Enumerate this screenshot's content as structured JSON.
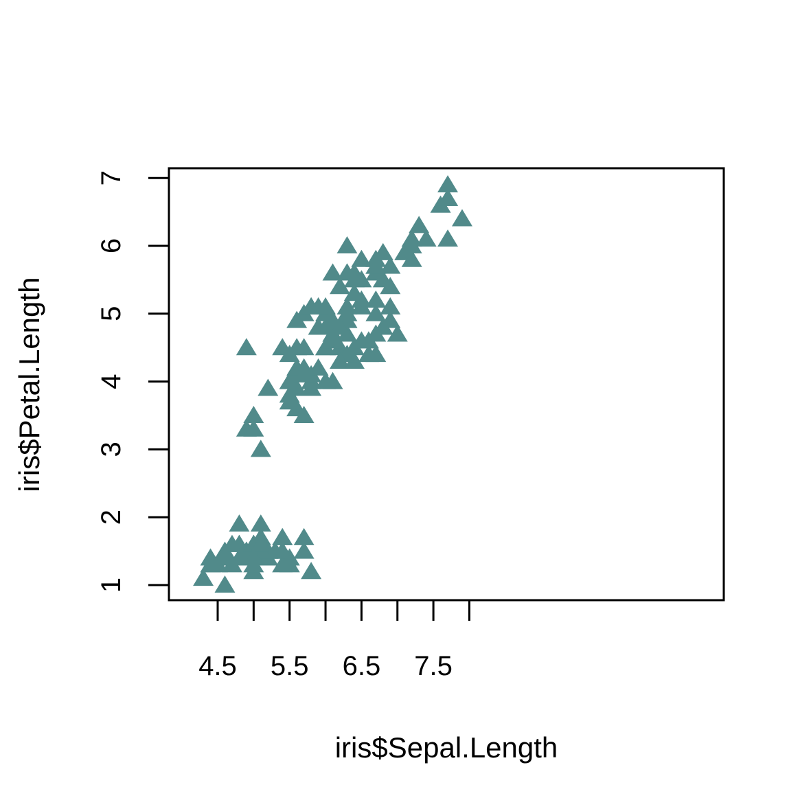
{
  "chart_data": {
    "type": "scatter",
    "title": "",
    "xlabel": "iris$Sepal.Length",
    "ylabel": "iris$Petal.Length",
    "xlim": [
      4.3,
      7.9
    ],
    "ylim": [
      1.0,
      6.9
    ],
    "grid": false,
    "marker": "filled-triangle",
    "color": "#518A8A",
    "x_ticks": [
      4.5,
      5.5,
      6.5,
      7.5
    ],
    "x_tick_labels": [
      "4.5",
      "5.5",
      "6.5",
      "7.5"
    ],
    "x_minor_ticks": [
      5.0,
      6.0,
      7.0,
      8.0
    ],
    "y_ticks": [
      1,
      2,
      3,
      4,
      5,
      6,
      7
    ],
    "y_tick_labels": [
      "1",
      "2",
      "3",
      "4",
      "5",
      "6",
      "7"
    ],
    "points": [
      [
        5.1,
        1.4
      ],
      [
        4.9,
        1.4
      ],
      [
        4.7,
        1.3
      ],
      [
        4.6,
        1.5
      ],
      [
        5.0,
        1.4
      ],
      [
        5.4,
        1.7
      ],
      [
        4.6,
        1.4
      ],
      [
        5.0,
        1.5
      ],
      [
        4.4,
        1.4
      ],
      [
        4.9,
        1.5
      ],
      [
        5.4,
        1.5
      ],
      [
        4.8,
        1.6
      ],
      [
        4.8,
        1.4
      ],
      [
        4.3,
        1.1
      ],
      [
        5.8,
        1.2
      ],
      [
        5.7,
        1.5
      ],
      [
        5.4,
        1.3
      ],
      [
        5.1,
        1.4
      ],
      [
        5.7,
        1.7
      ],
      [
        5.1,
        1.5
      ],
      [
        5.4,
        1.7
      ],
      [
        5.1,
        1.5
      ],
      [
        4.6,
        1.0
      ],
      [
        5.1,
        1.7
      ],
      [
        4.8,
        1.9
      ],
      [
        5.0,
        1.6
      ],
      [
        5.0,
        1.6
      ],
      [
        5.2,
        1.5
      ],
      [
        5.2,
        1.4
      ],
      [
        4.7,
        1.6
      ],
      [
        4.8,
        1.6
      ],
      [
        5.4,
        1.5
      ],
      [
        5.2,
        1.5
      ],
      [
        5.5,
        1.4
      ],
      [
        4.9,
        1.5
      ],
      [
        5.0,
        1.2
      ],
      [
        5.5,
        1.3
      ],
      [
        4.9,
        1.4
      ],
      [
        4.4,
        1.3
      ],
      [
        5.1,
        1.5
      ],
      [
        5.0,
        1.3
      ],
      [
        4.5,
        1.3
      ],
      [
        4.4,
        1.3
      ],
      [
        5.0,
        1.6
      ],
      [
        5.1,
        1.9
      ],
      [
        4.8,
        1.4
      ],
      [
        5.1,
        1.6
      ],
      [
        4.6,
        1.4
      ],
      [
        5.3,
        1.5
      ],
      [
        5.0,
        1.4
      ],
      [
        7.0,
        4.7
      ],
      [
        6.4,
        4.5
      ],
      [
        6.9,
        4.9
      ],
      [
        5.5,
        4.0
      ],
      [
        6.5,
        4.6
      ],
      [
        5.7,
        4.5
      ],
      [
        6.3,
        4.7
      ],
      [
        4.9,
        3.3
      ],
      [
        6.6,
        4.6
      ],
      [
        5.2,
        3.9
      ],
      [
        5.0,
        3.5
      ],
      [
        5.9,
        4.2
      ],
      [
        6.0,
        4.0
      ],
      [
        6.1,
        4.7
      ],
      [
        5.6,
        3.6
      ],
      [
        6.7,
        4.4
      ],
      [
        5.6,
        4.5
      ],
      [
        5.8,
        4.1
      ],
      [
        6.2,
        4.5
      ],
      [
        5.6,
        3.9
      ],
      [
        5.9,
        4.8
      ],
      [
        6.1,
        4.0
      ],
      [
        6.3,
        4.9
      ],
      [
        6.1,
        4.7
      ],
      [
        6.4,
        4.3
      ],
      [
        6.6,
        4.4
      ],
      [
        6.8,
        4.8
      ],
      [
        6.7,
        5.0
      ],
      [
        6.0,
        4.5
      ],
      [
        5.7,
        3.5
      ],
      [
        5.5,
        3.8
      ],
      [
        5.5,
        3.7
      ],
      [
        5.8,
        3.9
      ],
      [
        6.0,
        5.1
      ],
      [
        5.4,
        4.5
      ],
      [
        6.0,
        4.5
      ],
      [
        6.7,
        4.7
      ],
      [
        6.3,
        4.4
      ],
      [
        5.6,
        4.1
      ],
      [
        5.5,
        4.0
      ],
      [
        5.5,
        4.4
      ],
      [
        6.1,
        4.6
      ],
      [
        5.8,
        4.0
      ],
      [
        5.0,
        3.3
      ],
      [
        5.6,
        4.2
      ],
      [
        5.7,
        4.2
      ],
      [
        5.7,
        4.2
      ],
      [
        6.2,
        4.3
      ],
      [
        5.1,
        3.0
      ],
      [
        5.7,
        4.1
      ],
      [
        6.3,
        6.0
      ],
      [
        5.8,
        5.1
      ],
      [
        7.1,
        5.9
      ],
      [
        6.3,
        5.6
      ],
      [
        6.5,
        5.8
      ],
      [
        7.6,
        6.6
      ],
      [
        4.9,
        4.5
      ],
      [
        7.3,
        6.3
      ],
      [
        6.7,
        5.8
      ],
      [
        7.2,
        6.1
      ],
      [
        6.5,
        5.1
      ],
      [
        6.4,
        5.3
      ],
      [
        6.8,
        5.5
      ],
      [
        5.7,
        5.0
      ],
      [
        5.8,
        5.1
      ],
      [
        6.4,
        5.3
      ],
      [
        6.5,
        5.5
      ],
      [
        7.7,
        6.7
      ],
      [
        7.7,
        6.9
      ],
      [
        6.0,
        5.0
      ],
      [
        6.9,
        5.7
      ],
      [
        5.6,
        4.9
      ],
      [
        7.7,
        6.7
      ],
      [
        6.3,
        4.9
      ],
      [
        6.7,
        5.7
      ],
      [
        7.2,
        6.0
      ],
      [
        6.2,
        4.8
      ],
      [
        6.1,
        4.9
      ],
      [
        6.4,
        5.6
      ],
      [
        7.2,
        5.8
      ],
      [
        7.4,
        6.1
      ],
      [
        7.9,
        6.4
      ],
      [
        6.4,
        5.6
      ],
      [
        6.3,
        5.1
      ],
      [
        6.1,
        5.6
      ],
      [
        7.7,
        6.1
      ],
      [
        6.3,
        5.6
      ],
      [
        6.4,
        5.5
      ],
      [
        6.0,
        4.8
      ],
      [
        6.9,
        5.4
      ],
      [
        6.7,
        5.6
      ],
      [
        6.9,
        5.1
      ],
      [
        5.8,
        5.1
      ],
      [
        6.8,
        5.9
      ],
      [
        6.7,
        5.7
      ],
      [
        6.7,
        5.2
      ],
      [
        6.3,
        5.0
      ],
      [
        6.5,
        5.2
      ],
      [
        6.2,
        5.4
      ],
      [
        5.9,
        5.1
      ]
    ]
  }
}
